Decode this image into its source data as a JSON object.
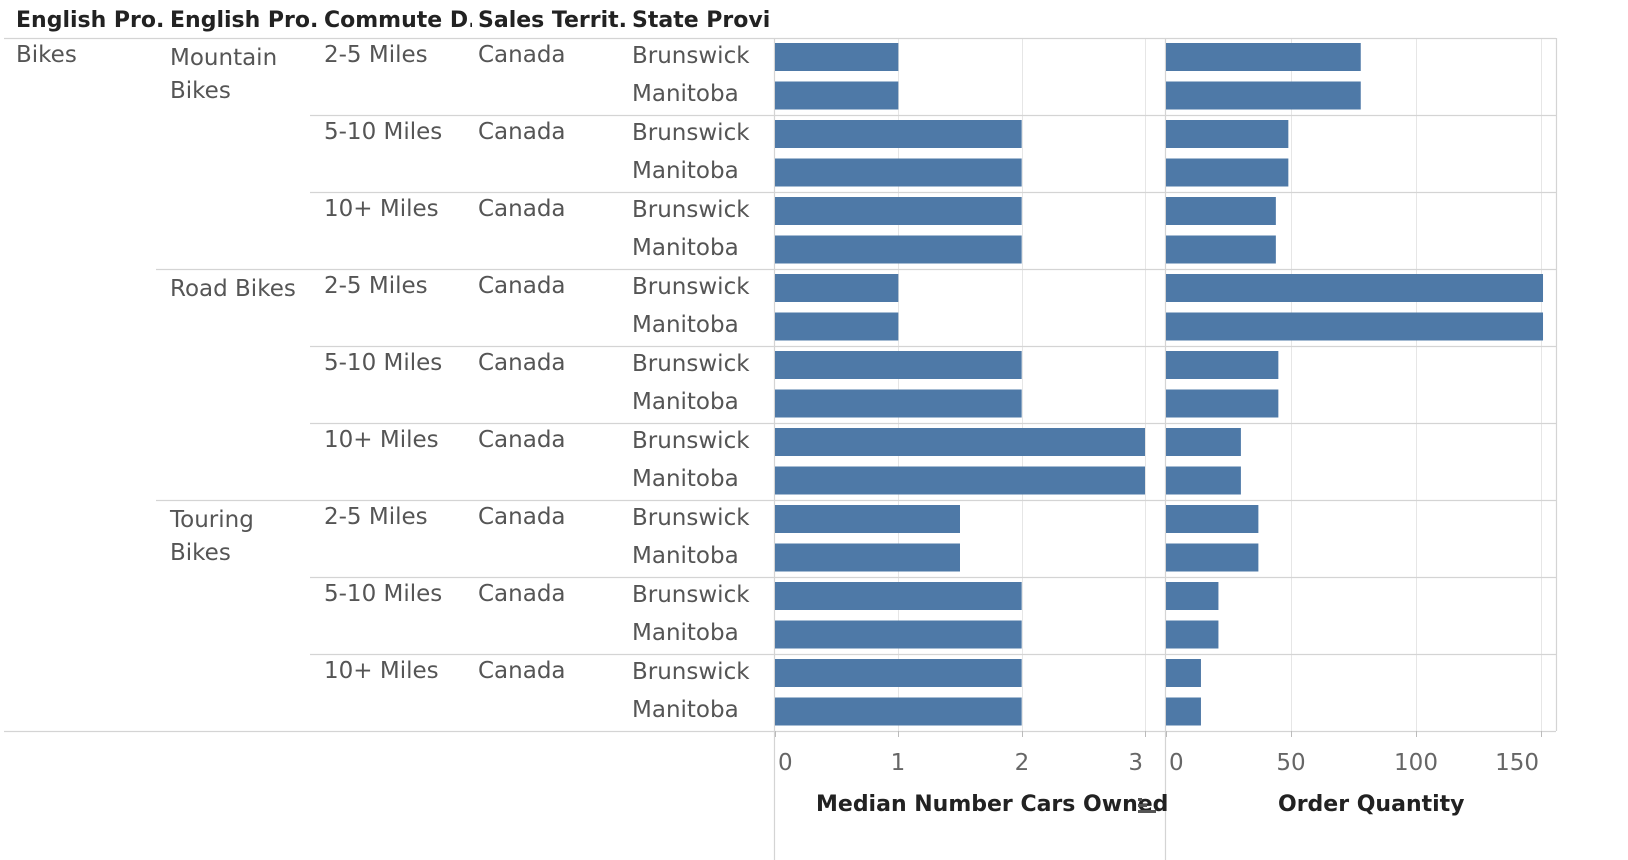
{
  "headers": [
    "English Pro..",
    "English Pro..",
    "Commute D..",
    "Sales Territ..",
    "State Provi.."
  ],
  "category_l1": "Bikes",
  "rows": [
    {
      "subcat": "Mountain Bikes",
      "commute": "2-5 Miles",
      "territory": "Canada",
      "provinces": [
        "Brunswick",
        "Manitoba"
      ]
    },
    {
      "subcat": "",
      "commute": "5-10 Miles",
      "territory": "Canada",
      "provinces": [
        "Brunswick",
        "Manitoba"
      ]
    },
    {
      "subcat": "",
      "commute": "10+ Miles",
      "territory": "Canada",
      "provinces": [
        "Brunswick",
        "Manitoba"
      ]
    },
    {
      "subcat": "Road Bikes",
      "commute": "2-5 Miles",
      "territory": "Canada",
      "provinces": [
        "Brunswick",
        "Manitoba"
      ]
    },
    {
      "subcat": "",
      "commute": "5-10 Miles",
      "territory": "Canada",
      "provinces": [
        "Brunswick",
        "Manitoba"
      ]
    },
    {
      "subcat": "",
      "commute": "10+ Miles",
      "territory": "Canada",
      "provinces": [
        "Brunswick",
        "Manitoba"
      ]
    },
    {
      "subcat": "Touring Bikes",
      "commute": "2-5 Miles",
      "territory": "Canada",
      "provinces": [
        "Brunswick",
        "Manitoba"
      ]
    },
    {
      "subcat": "",
      "commute": "5-10 Miles",
      "territory": "Canada",
      "provinces": [
        "Brunswick",
        "Manitoba"
      ]
    },
    {
      "subcat": "",
      "commute": "10+ Miles",
      "territory": "Canada",
      "provinces": [
        "Brunswick",
        "Manitoba"
      ]
    }
  ],
  "colors": {
    "bar": "#4e79a7",
    "grid": "#e6e6e6",
    "divider": "#d4d4d4"
  },
  "chart_data": [
    {
      "type": "bar",
      "orientation": "horizontal",
      "xlabel": "Median Number Cars Owned",
      "xlim": [
        0,
        3
      ],
      "ticks": [
        0,
        1,
        2,
        3
      ],
      "values": [
        1,
        1,
        2,
        2,
        2,
        2,
        1,
        1,
        2,
        2,
        3,
        3,
        1.5,
        1.5,
        2,
        2,
        2,
        2
      ]
    },
    {
      "type": "bar",
      "orientation": "horizontal",
      "xlabel": "Order Quantity",
      "xlim": [
        0,
        155
      ],
      "ticks": [
        0,
        50,
        100,
        150
      ],
      "values": [
        78,
        78,
        49,
        49,
        44,
        44,
        151,
        151,
        45,
        45,
        30,
        30,
        37,
        37,
        21,
        21,
        14,
        14
      ]
    }
  ]
}
